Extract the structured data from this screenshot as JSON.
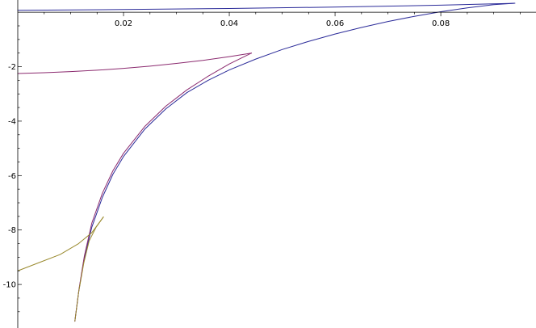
{
  "chart_data": {
    "type": "line",
    "title": "",
    "xlabel": "",
    "ylabel": "",
    "xlim": [
      0.0,
      0.098
    ],
    "ylim": [
      -11.6,
      0.45
    ],
    "grid": false,
    "x_ticks": [
      {
        "value": 0.02,
        "label": "0.02"
      },
      {
        "value": 0.04,
        "label": "0.04"
      },
      {
        "value": 0.06,
        "label": "0.06"
      },
      {
        "value": 0.08,
        "label": "0.08"
      }
    ],
    "x_minor_ticks": [
      0.005,
      0.01,
      0.015,
      0.025,
      0.03,
      0.035,
      0.045,
      0.05,
      0.055,
      0.065,
      0.07,
      0.075,
      0.085,
      0.09,
      0.095
    ],
    "y_ticks": [
      {
        "value": -2,
        "label": "-2"
      },
      {
        "value": -4,
        "label": "-4"
      },
      {
        "value": -6,
        "label": "-6"
      },
      {
        "value": -8,
        "label": "-8"
      },
      {
        "value": -10,
        "label": "-10"
      }
    ],
    "y_minor_ticks": [
      -0.5,
      -1,
      -1.5,
      -2.5,
      -3,
      -3.5,
      -4.5,
      -5,
      -5.5,
      -6.5,
      -7,
      -7.5,
      -8.5,
      -9,
      -9.5,
      -10.5,
      -11
    ],
    "series": [
      {
        "color": "#2b2b99",
        "points": [
          [
            0.0,
            0.07
          ],
          [
            0.02,
            0.1
          ],
          [
            0.04,
            0.14
          ],
          [
            0.06,
            0.19
          ],
          [
            0.08,
            0.26
          ],
          [
            0.094,
            0.33
          ]
        ]
      },
      {
        "color": "#2b2b99",
        "points": [
          [
            0.0108,
            -11.35
          ],
          [
            0.0115,
            -10.3
          ],
          [
            0.0125,
            -9.1
          ],
          [
            0.014,
            -7.9
          ],
          [
            0.016,
            -6.8
          ],
          [
            0.018,
            -5.95
          ],
          [
            0.02,
            -5.3
          ],
          [
            0.024,
            -4.3
          ],
          [
            0.028,
            -3.55
          ],
          [
            0.032,
            -2.95
          ],
          [
            0.036,
            -2.5
          ],
          [
            0.04,
            -2.12
          ],
          [
            0.045,
            -1.72
          ],
          [
            0.05,
            -1.37
          ],
          [
            0.055,
            -1.07
          ],
          [
            0.06,
            -0.8
          ],
          [
            0.065,
            -0.56
          ],
          [
            0.07,
            -0.34
          ],
          [
            0.075,
            -0.15
          ],
          [
            0.08,
            0.02
          ],
          [
            0.085,
            0.16
          ],
          [
            0.09,
            0.28
          ],
          [
            0.094,
            0.33
          ]
        ]
      },
      {
        "color": "#8b2a6f",
        "points": [
          [
            0.0,
            -2.25
          ],
          [
            0.005,
            -2.22
          ],
          [
            0.01,
            -2.18
          ],
          [
            0.015,
            -2.13
          ],
          [
            0.02,
            -2.06
          ],
          [
            0.025,
            -1.98
          ],
          [
            0.03,
            -1.88
          ],
          [
            0.035,
            -1.77
          ],
          [
            0.04,
            -1.63
          ],
          [
            0.0442,
            -1.5
          ]
        ]
      },
      {
        "color": "#8b2a6f",
        "points": [
          [
            0.0108,
            -11.35
          ],
          [
            0.0116,
            -10.15
          ],
          [
            0.0126,
            -8.95
          ],
          [
            0.014,
            -7.75
          ],
          [
            0.016,
            -6.65
          ],
          [
            0.018,
            -5.82
          ],
          [
            0.02,
            -5.18
          ],
          [
            0.024,
            -4.2
          ],
          [
            0.028,
            -3.45
          ],
          [
            0.032,
            -2.85
          ],
          [
            0.036,
            -2.35
          ],
          [
            0.04,
            -1.9
          ],
          [
            0.0442,
            -1.5
          ]
        ]
      },
      {
        "color": "#9a8a2e",
        "points": [
          [
            0.0,
            -9.5
          ],
          [
            0.004,
            -9.2
          ],
          [
            0.008,
            -8.9
          ],
          [
            0.0115,
            -8.5
          ],
          [
            0.014,
            -8.1
          ],
          [
            0.0162,
            -7.52
          ]
        ]
      },
      {
        "color": "#9a8a2e",
        "points": [
          [
            0.0108,
            -11.35
          ],
          [
            0.0115,
            -10.3
          ],
          [
            0.0125,
            -9.2
          ],
          [
            0.0135,
            -8.4
          ],
          [
            0.0148,
            -7.9
          ],
          [
            0.0162,
            -7.52
          ]
        ]
      }
    ]
  }
}
